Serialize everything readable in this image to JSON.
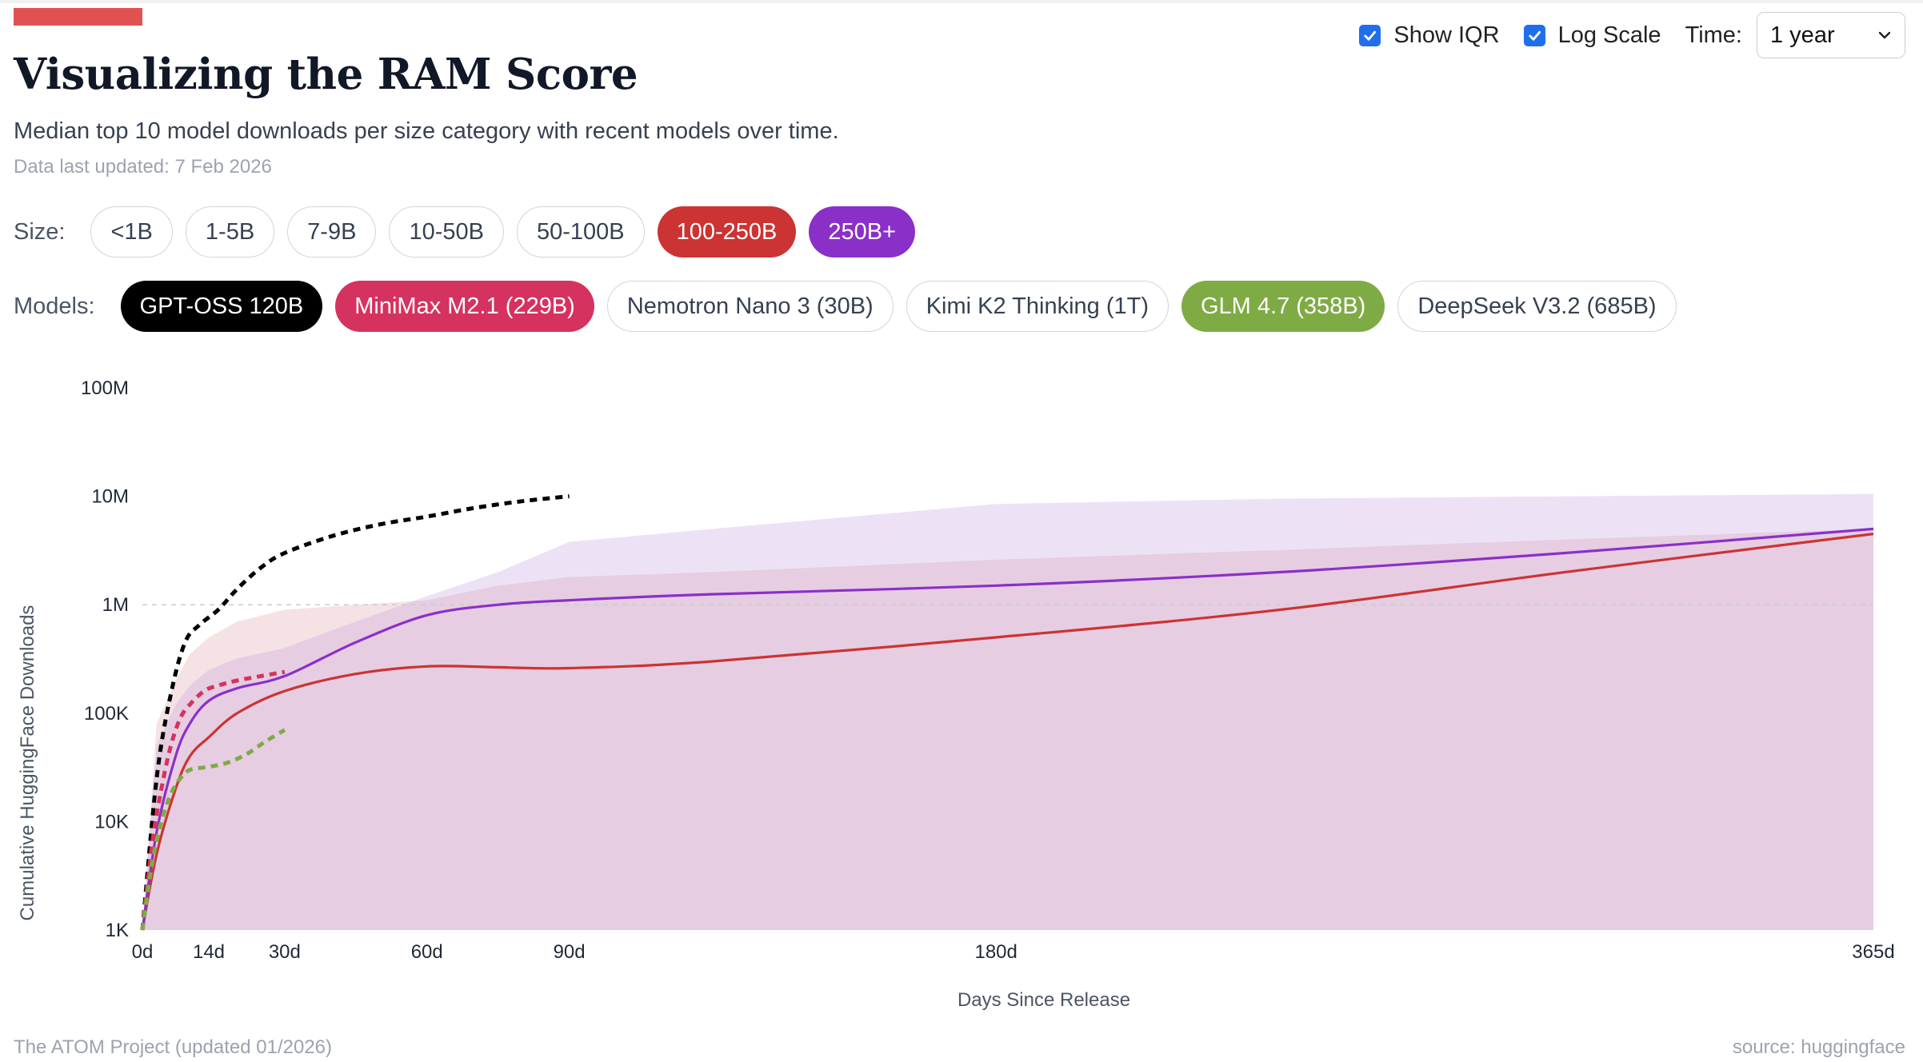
{
  "header": {
    "title": "Visualizing the RAM Score",
    "subtitle": "Median top 10 model downloads per size category with recent models over time.",
    "updated": "Data last updated: 7 Feb 2026",
    "accent_color": "#e05252"
  },
  "controls": {
    "show_iqr": {
      "label": "Show IQR",
      "checked": true
    },
    "log_scale": {
      "label": "Log Scale",
      "checked": true
    },
    "time": {
      "label": "Time:",
      "value": "1 year"
    }
  },
  "sizes": {
    "label": "Size:",
    "items": [
      {
        "label": "<1B",
        "active": false,
        "color": ""
      },
      {
        "label": "1-5B",
        "active": false,
        "color": ""
      },
      {
        "label": "7-9B",
        "active": false,
        "color": ""
      },
      {
        "label": "10-50B",
        "active": false,
        "color": ""
      },
      {
        "label": "50-100B",
        "active": false,
        "color": ""
      },
      {
        "label": "100-250B",
        "active": true,
        "color": "#cc3333"
      },
      {
        "label": "250B+",
        "active": true,
        "color": "#8b2fc9"
      }
    ]
  },
  "models": {
    "label": "Models:",
    "items": [
      {
        "label": "GPT-OSS 120B",
        "active": true,
        "color": "#000000"
      },
      {
        "label": "MiniMax M2.1 (229B)",
        "active": true,
        "color": "#d6325f"
      },
      {
        "label": "Nemotron Nano 3 (30B)",
        "active": false,
        "color": ""
      },
      {
        "label": "Kimi K2 Thinking (1T)",
        "active": false,
        "color": ""
      },
      {
        "label": "GLM 4.7 (358B)",
        "active": true,
        "color": "#7fab45"
      },
      {
        "label": "DeepSeek V3.2 (685B)",
        "active": false,
        "color": ""
      }
    ]
  },
  "chart_data": {
    "type": "line",
    "ylabel": "Cumulative HuggingFace Downloads",
    "xlabel": "Days Since Release",
    "y_scale": "log",
    "ylim": [
      1000,
      100000000
    ],
    "xlim": [
      0,
      365
    ],
    "y_ticks": [
      {
        "value": 1000,
        "label": "1K"
      },
      {
        "value": 10000,
        "label": "10K"
      },
      {
        "value": 100000,
        "label": "100K"
      },
      {
        "value": 1000000,
        "label": "1M"
      },
      {
        "value": 10000000,
        "label": "10M"
      },
      {
        "value": 100000000,
        "label": "100M"
      }
    ],
    "x_ticks": [
      {
        "value": 0,
        "label": "0d"
      },
      {
        "value": 14,
        "label": "14d"
      },
      {
        "value": 30,
        "label": "30d"
      },
      {
        "value": 60,
        "label": "60d"
      },
      {
        "value": 90,
        "label": "90d"
      },
      {
        "value": 180,
        "label": "180d"
      },
      {
        "value": 365,
        "label": "365d"
      }
    ],
    "reference_line": 1000000,
    "series": [
      {
        "name": "100-250B",
        "style": "solid",
        "color": "#cc3333",
        "x": [
          0,
          3,
          7,
          10,
          14,
          20,
          30,
          45,
          60,
          75,
          90,
          120,
          180,
          240,
          300,
          365
        ],
        "y": [
          1000,
          5000,
          20000,
          40000,
          60000,
          100000,
          160000,
          230000,
          270000,
          265000,
          260000,
          300000,
          500000,
          900000,
          2000000,
          4500000
        ],
        "iqr_low": [
          1000,
          1000,
          1000,
          1000,
          1000,
          1000,
          1000,
          1000,
          1000,
          1000,
          1000,
          1000,
          1000,
          1000,
          1000,
          1000
        ],
        "iqr_high": [
          1000,
          80000,
          200000,
          350000,
          500000,
          700000,
          900000,
          1000000,
          1100000,
          1500000,
          1800000,
          2000000,
          2600000,
          3200000,
          4000000,
          5000000
        ]
      },
      {
        "name": "250B+",
        "style": "solid",
        "color": "#8b2fc9",
        "x": [
          0,
          3,
          7,
          10,
          14,
          20,
          30,
          45,
          60,
          75,
          90,
          120,
          180,
          240,
          300,
          365
        ],
        "y": [
          1000,
          8000,
          40000,
          80000,
          130000,
          170000,
          220000,
          450000,
          800000,
          1000000,
          1100000,
          1250000,
          1500000,
          2000000,
          3000000,
          5000000
        ],
        "iqr_low": [
          1000,
          1000,
          1000,
          1000,
          1000,
          1000,
          1000,
          1000,
          1000,
          1000,
          1000,
          1000,
          1000,
          1000,
          1000,
          1000
        ],
        "iqr_high": [
          1000,
          50000,
          120000,
          180000,
          250000,
          320000,
          400000,
          700000,
          1200000,
          2000000,
          3800000,
          5000000,
          8500000,
          9500000,
          10000000,
          10500000
        ]
      },
      {
        "name": "GPT-OSS 120B",
        "style": "dashed",
        "color": "#000000",
        "x": [
          0,
          3,
          6,
          9,
          12,
          16,
          20,
          25,
          30,
          40,
          50,
          60,
          70,
          80,
          90
        ],
        "y": [
          1000,
          25000,
          150000,
          450000,
          650000,
          900000,
          1400000,
          2200000,
          3000000,
          4300000,
          5500000,
          6500000,
          7800000,
          9000000,
          10000000
        ]
      },
      {
        "name": "MiniMax M2.1 (229B)",
        "style": "dashed",
        "color": "#d6325f",
        "x": [
          0,
          2,
          4,
          6,
          8,
          10,
          13,
          16,
          20,
          25,
          30
        ],
        "y": [
          1000,
          6000,
          20000,
          50000,
          90000,
          120000,
          160000,
          180000,
          200000,
          220000,
          240000
        ]
      },
      {
        "name": "GLM 4.7 (358B)",
        "style": "dashed",
        "color": "#7fab45",
        "x": [
          0,
          2,
          4,
          6,
          8,
          10,
          14,
          18,
          22,
          26,
          30
        ],
        "y": [
          1000,
          4000,
          10000,
          18000,
          25000,
          30000,
          32000,
          35000,
          42000,
          55000,
          70000
        ]
      }
    ]
  },
  "footer": {
    "left": "The ATOM Project (updated 01/2026)",
    "right": "source: huggingface"
  }
}
